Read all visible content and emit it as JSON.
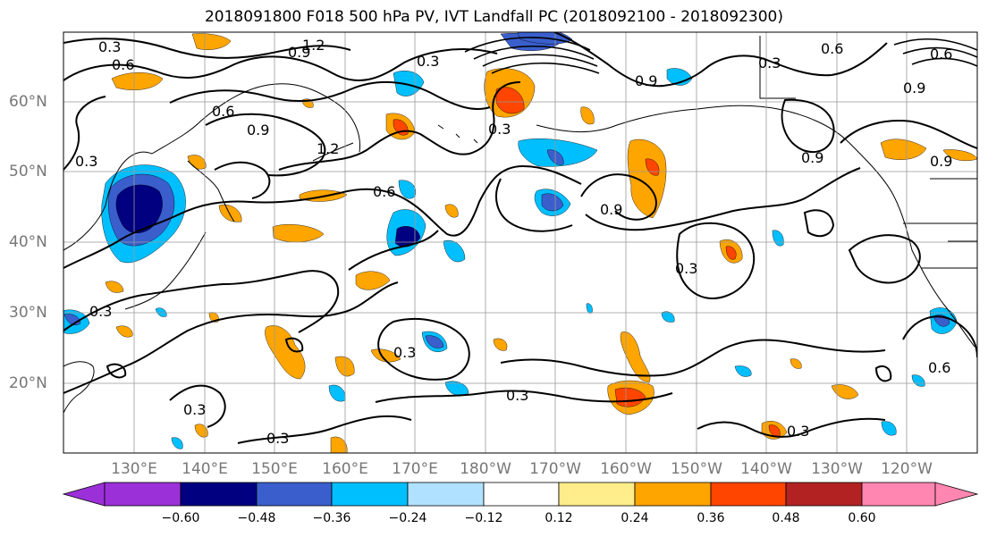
{
  "title": "2018091800 F018 500 hPa PV, IVT Landfall PC (2018092100 - 2018092300)",
  "lat_labels": [
    "60°N",
    "50°N",
    "40°N",
    "30°N",
    "20°N"
  ],
  "lon_labels": [
    "130°E",
    "140°E",
    "150°E",
    "160°E",
    "170°E",
    "180°W",
    "170°W",
    "160°W",
    "150°W",
    "140°W",
    "130°W",
    "120°W"
  ],
  "contour_labels": [
    "0.3",
    "0.6",
    "1.2",
    "0.9",
    "0.3",
    "0.6",
    "0.9",
    "0.6",
    "0.9",
    "0.9",
    "1.2",
    "0.6",
    "0.3",
    "0.6",
    "0.9",
    "0.3",
    "0.9",
    "0.9",
    "0.3",
    "0.3",
    "0.3",
    "0.3",
    "0.3",
    "0.3",
    "0.6",
    "0.3",
    "0.3"
  ],
  "colorbar": {
    "ticks": [
      "−0.60",
      "−0.48",
      "−0.36",
      "−0.24",
      "−0.12",
      "0.12",
      "0.24",
      "0.36",
      "0.48",
      "0.60"
    ],
    "colors": [
      "#9b30d9",
      "#000080",
      "#3a5fcd",
      "#00bfff",
      "#b0e2ff",
      "#ffffff",
      "#ffec8b",
      "#ffa500",
      "#ff4500",
      "#b22222",
      "#ff86b0"
    ]
  },
  "chart_data": {
    "type": "heatmap",
    "title": "2018091800 F018 500 hPa PV, IVT Landfall PC (2018092100 - 2018092300)",
    "xlabel": "",
    "ylabel": "",
    "lon_range": [
      "120°E",
      "115°W"
    ],
    "lat_range": [
      "10°N",
      "70°N"
    ],
    "gridlines": true,
    "contour_levels": [
      0.3,
      0.6,
      0.9,
      1.2
    ],
    "colorbar_levels": [
      -0.6,
      -0.48,
      -0.36,
      -0.24,
      -0.12,
      0.12,
      0.24,
      0.36,
      0.48,
      0.6
    ],
    "colorbar_location": "bottom",
    "colorbar_extend": "both"
  }
}
